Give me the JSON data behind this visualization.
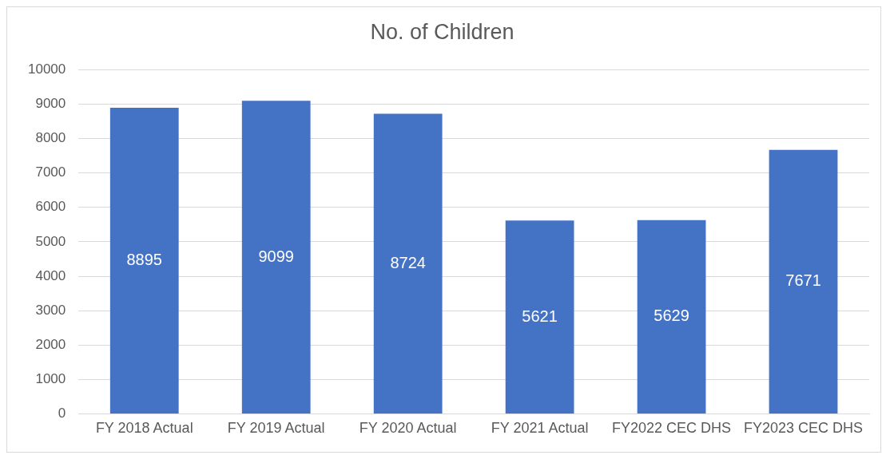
{
  "chart_data": {
    "type": "bar",
    "title": "No. of Children",
    "categories": [
      "FY 2018 Actual",
      "FY 2019 Actual",
      "FY 2020 Actual",
      "FY 2021 Actual",
      "FY2022 CEC DHS",
      "FY2023 CEC DHS"
    ],
    "values": [
      8895,
      9099,
      8724,
      5621,
      5629,
      7671
    ],
    "color": "#4472c4",
    "ylim": [
      0,
      10000
    ],
    "yticks": [
      0,
      1000,
      2000,
      3000,
      4000,
      5000,
      6000,
      7000,
      8000,
      9000,
      10000
    ],
    "grid": "y",
    "data_labels": true,
    "legend": false
  }
}
